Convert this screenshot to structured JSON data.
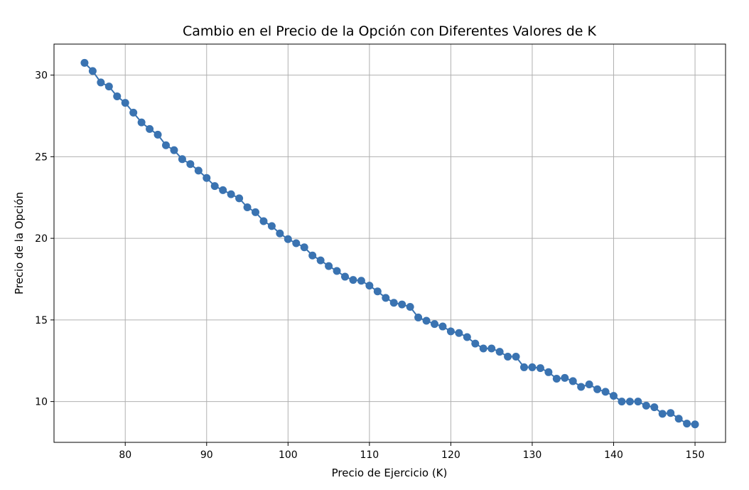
{
  "chart_data": {
    "type": "line",
    "title": "Cambio en el Precio de la Opción con Diferentes Valores de K",
    "xlabel": "Precio de Ejercicio (K)",
    "ylabel": "Precio de la Opción",
    "xlim": [
      71.25,
      153.75
    ],
    "ylim": [
      7.5,
      31.9
    ],
    "xticks": [
      80,
      90,
      100,
      110,
      120,
      130,
      140,
      150
    ],
    "yticks": [
      10,
      15,
      20,
      25,
      30
    ],
    "grid": true,
    "marker": "circle",
    "series_color": "#3a73b1",
    "series": [
      {
        "x": [
          75,
          76,
          77,
          78,
          79,
          80,
          81,
          82,
          83,
          84,
          85,
          86,
          87,
          88,
          89,
          90,
          91,
          92,
          93,
          94,
          95,
          96,
          97,
          98,
          99,
          100,
          101,
          102,
          103,
          104,
          105,
          106,
          107,
          108,
          109,
          110,
          111,
          112,
          113,
          114,
          115,
          116,
          117,
          118,
          119,
          120,
          121,
          122,
          123,
          124,
          125,
          126,
          127,
          128,
          129,
          130,
          131,
          132,
          133,
          134,
          135,
          136,
          137,
          138,
          139,
          140,
          141,
          142,
          143,
          144,
          145,
          146,
          147,
          148,
          149,
          150
        ],
        "y": [
          30.75,
          30.25,
          29.55,
          29.3,
          28.7,
          28.3,
          27.7,
          27.1,
          26.7,
          26.35,
          25.7,
          25.4,
          24.85,
          24.55,
          24.15,
          23.7,
          23.2,
          22.95,
          22.7,
          22.45,
          21.9,
          21.6,
          21.05,
          20.75,
          20.3,
          19.95,
          19.7,
          19.45,
          18.95,
          18.65,
          18.3,
          18.0,
          17.65,
          17.45,
          17.4,
          17.1,
          16.75,
          16.35,
          16.05,
          15.95,
          15.8,
          15.15,
          14.95,
          14.75,
          14.6,
          14.3,
          14.2,
          13.95,
          13.55,
          13.25,
          13.25,
          13.05,
          12.75,
          12.75,
          12.1,
          12.1,
          12.05,
          11.8,
          11.4,
          11.45,
          11.25,
          10.9,
          11.05,
          10.75,
          10.6,
          10.35,
          10.0,
          10.0,
          10.0,
          9.75,
          9.65,
          9.25,
          9.3,
          8.95,
          8.65,
          8.6
        ]
      }
    ]
  }
}
